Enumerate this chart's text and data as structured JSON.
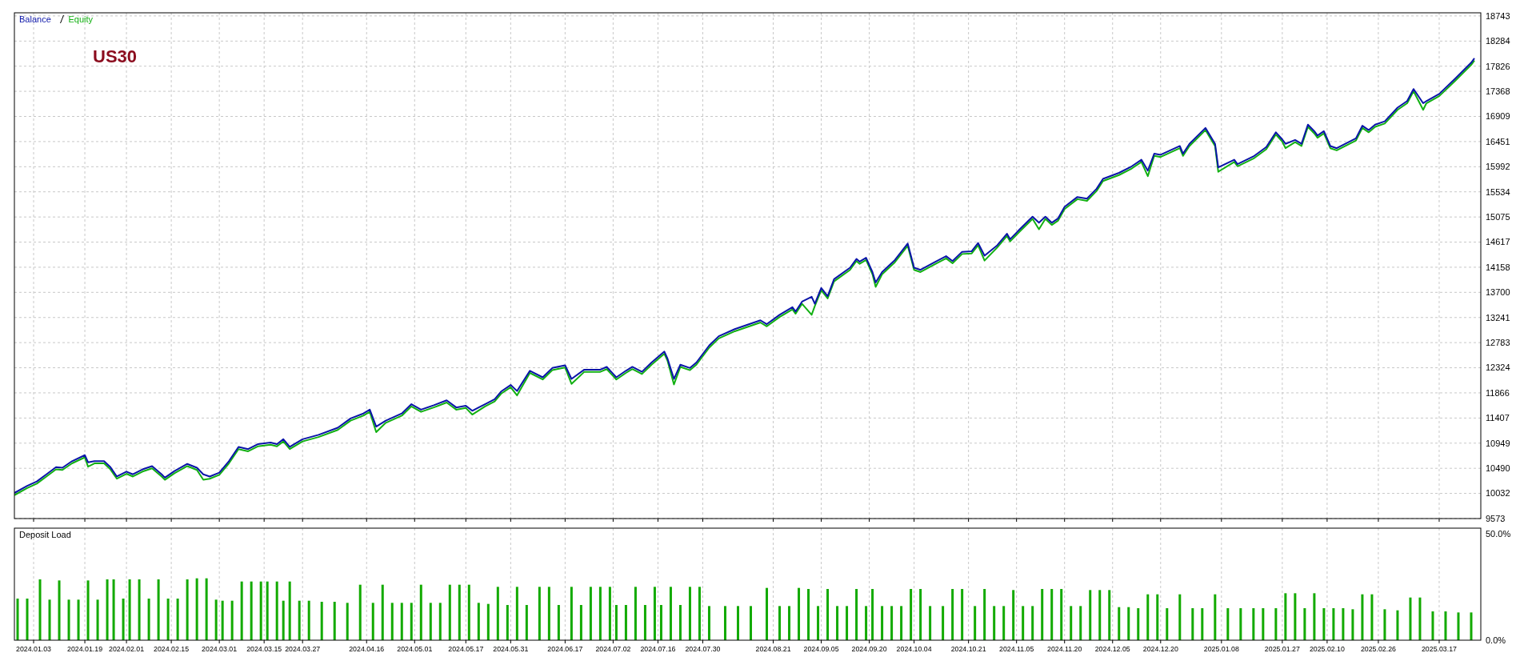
{
  "chart_data": [
    {
      "type": "line",
      "annotations": [
        "US30"
      ],
      "legend": "top left",
      "grid": true,
      "tick_labels": "y",
      "xlim": [
        "2023-12-28",
        "2025-03-30"
      ],
      "xticks": [
        {
          "value": "2024-01-03",
          "label": null
        },
        {
          "value": "2024-01-19",
          "label": null
        },
        {
          "value": "2024-02-01",
          "label": null
        },
        {
          "value": "2024-02-15",
          "label": null
        },
        {
          "value": "2024-03-01",
          "label": null
        },
        {
          "value": "2024-03-15",
          "label": null
        },
        {
          "value": "2024-03-27",
          "label": null
        },
        {
          "value": "2024-04-16",
          "label": null
        },
        {
          "value": "2024-05-01",
          "label": null
        },
        {
          "value": "2024-05-17",
          "label": null
        },
        {
          "value": "2024-05-31",
          "label": null
        },
        {
          "value": "2024-06-17",
          "label": null
        },
        {
          "value": "2024-07-02",
          "label": null
        },
        {
          "value": "2024-07-16",
          "label": null
        },
        {
          "value": "2024-07-30",
          "label": null
        },
        {
          "value": "2024-08-21",
          "label": null
        },
        {
          "value": "2024-09-05",
          "label": null
        },
        {
          "value": "2024-09-20",
          "label": null
        },
        {
          "value": "2024-10-04",
          "label": null
        },
        {
          "value": "2024-10-21",
          "label": null
        },
        {
          "value": "2024-11-05",
          "label": null
        },
        {
          "value": "2024-11-20",
          "label": null
        },
        {
          "value": "2024-12-05",
          "label": null
        },
        {
          "value": "2024-12-20",
          "label": null
        },
        {
          "value": "2025-01-08",
          "label": null
        },
        {
          "value": "2025-01-27",
          "label": null
        },
        {
          "value": "2025-02-10",
          "label": null
        },
        {
          "value": "2025-02-26",
          "label": null
        },
        {
          "value": "2025-03-17",
          "label": null
        }
      ],
      "ylim": [
        9573,
        18800
      ],
      "yticks": [
        9573,
        10032,
        10490,
        10949,
        11407,
        11866,
        12324,
        12783,
        13241,
        13700,
        14158,
        14617,
        15075,
        15534,
        15992,
        16451,
        16909,
        17368,
        17826,
        18284,
        18743
      ],
      "x": [
        "2023-12-28",
        "2024-01-01",
        "2024-01-04",
        "2024-01-07",
        "2024-01-10",
        "2024-01-12",
        "2024-01-15",
        "2024-01-19",
        "2024-01-20",
        "2024-01-22",
        "2024-01-25",
        "2024-01-27",
        "2024-01-29",
        "2024-02-01",
        "2024-02-03",
        "2024-02-06",
        "2024-02-09",
        "2024-02-12",
        "2024-02-13",
        "2024-02-16",
        "2024-02-20",
        "2024-02-23",
        "2024-02-25",
        "2024-02-27",
        "2024-03-01",
        "2024-03-04",
        "2024-03-07",
        "2024-03-10",
        "2024-03-13",
        "2024-03-17",
        "2024-03-19",
        "2024-03-21",
        "2024-03-23",
        "2024-03-27",
        "2024-04-01",
        "2024-04-07",
        "2024-04-11",
        "2024-04-15",
        "2024-04-17",
        "2024-04-19",
        "2024-04-22",
        "2024-04-27",
        "2024-04-30",
        "2024-05-03",
        "2024-05-07",
        "2024-05-11",
        "2024-05-14",
        "2024-05-17",
        "2024-05-19",
        "2024-05-23",
        "2024-05-26",
        "2024-05-28",
        "2024-05-31",
        "2024-06-02",
        "2024-06-06",
        "2024-06-10",
        "2024-06-13",
        "2024-06-17",
        "2024-06-19",
        "2024-06-23",
        "2024-06-28",
        "2024-06-30",
        "2024-07-03",
        "2024-07-06",
        "2024-07-08",
        "2024-07-11",
        "2024-07-14",
        "2024-07-18",
        "2024-07-19",
        "2024-07-21",
        "2024-07-23",
        "2024-07-26",
        "2024-07-28",
        "2024-08-01",
        "2024-08-04",
        "2024-08-09",
        "2024-08-17",
        "2024-08-19",
        "2024-08-23",
        "2024-08-27",
        "2024-08-28",
        "2024-08-30",
        "2024-09-02",
        "2024-09-03",
        "2024-09-05",
        "2024-09-07",
        "2024-09-09",
        "2024-09-14",
        "2024-09-16",
        "2024-09-17",
        "2024-09-19",
        "2024-09-21",
        "2024-09-22",
        "2024-09-24",
        "2024-09-28",
        "2024-10-02",
        "2024-10-04",
        "2024-10-06",
        "2024-10-11",
        "2024-10-14",
        "2024-10-16",
        "2024-10-19",
        "2024-10-22",
        "2024-10-24",
        "2024-10-26",
        "2024-10-30",
        "2024-11-02",
        "2024-11-03",
        "2024-11-06",
        "2024-11-10",
        "2024-11-12",
        "2024-11-14",
        "2024-11-16",
        "2024-11-18",
        "2024-11-20",
        "2024-11-24",
        "2024-11-27",
        "2024-11-30",
        "2024-12-02",
        "2024-12-07",
        "2024-12-11",
        "2024-12-14",
        "2024-12-16",
        "2024-12-18",
        "2024-12-20",
        "2024-12-26",
        "2024-12-27",
        "2024-12-29",
        "2025-01-03",
        "2025-01-06",
        "2025-01-07",
        "2025-01-12",
        "2025-01-13",
        "2025-01-18",
        "2025-01-22",
        "2025-01-25",
        "2025-01-27",
        "2025-01-28",
        "2025-01-31",
        "2025-02-02",
        "2025-02-04",
        "2025-02-06",
        "2025-02-07",
        "2025-02-09",
        "2025-02-11",
        "2025-02-13",
        "2025-02-19",
        "2025-02-21",
        "2025-02-23",
        "2025-02-25",
        "2025-02-28",
        "2025-03-04",
        "2025-03-07",
        "2025-03-09",
        "2025-03-12",
        "2025-03-13",
        "2025-03-17",
        "2025-03-22",
        "2025-03-27",
        "2025-03-28"
      ],
      "series": [
        {
          "name": "Balance",
          "color": "#0a14a8",
          "values": [
            10040,
            10170,
            10250,
            10380,
            10510,
            10500,
            10620,
            10730,
            10600,
            10620,
            10620,
            10510,
            10340,
            10430,
            10380,
            10470,
            10530,
            10380,
            10320,
            10440,
            10570,
            10500,
            10380,
            10340,
            10410,
            10620,
            10880,
            10840,
            10930,
            10960,
            10930,
            11020,
            10880,
            11020,
            11100,
            11230,
            11400,
            11490,
            11560,
            11250,
            11360,
            11490,
            11660,
            11560,
            11640,
            11730,
            11600,
            11630,
            11540,
            11660,
            11750,
            11890,
            12010,
            11900,
            12270,
            12150,
            12320,
            12370,
            12120,
            12290,
            12290,
            12340,
            12150,
            12270,
            12340,
            12250,
            12420,
            12620,
            12490,
            12120,
            12380,
            12320,
            12420,
            12730,
            12900,
            13030,
            13190,
            13120,
            13290,
            13430,
            13350,
            13530,
            13620,
            13490,
            13780,
            13630,
            13940,
            14150,
            14310,
            14260,
            14330,
            14070,
            13880,
            14070,
            14290,
            14590,
            14150,
            14110,
            14270,
            14360,
            14270,
            14440,
            14450,
            14600,
            14370,
            14560,
            14770,
            14670,
            14850,
            15080,
            14970,
            15080,
            14970,
            15050,
            15260,
            15440,
            15410,
            15590,
            15770,
            15880,
            16000,
            16120,
            15920,
            16230,
            16210,
            16370,
            16230,
            16410,
            16700,
            16410,
            15980,
            16120,
            16040,
            16180,
            16350,
            16620,
            16490,
            16410,
            16480,
            16410,
            16760,
            16640,
            16560,
            16640,
            16370,
            16330,
            16510,
            16740,
            16660,
            16760,
            16820,
            17070,
            17190,
            17410,
            17150,
            17190,
            17320,
            17600,
            17890,
            17970
          ]
        },
        {
          "name": "Equity",
          "color": "#12b012",
          "values": [
            10000,
            10130,
            10210,
            10340,
            10470,
            10460,
            10580,
            10690,
            10520,
            10580,
            10580,
            10470,
            10300,
            10390,
            10340,
            10430,
            10490,
            10340,
            10280,
            10400,
            10530,
            10460,
            10280,
            10300,
            10370,
            10580,
            10840,
            10800,
            10890,
            10920,
            10890,
            10980,
            10840,
            10980,
            11060,
            11190,
            11360,
            11450,
            11520,
            11150,
            11320,
            11450,
            11620,
            11520,
            11600,
            11690,
            11560,
            11590,
            11470,
            11620,
            11710,
            11850,
            11970,
            11820,
            12230,
            12110,
            12280,
            12330,
            12030,
            12250,
            12250,
            12300,
            12110,
            12230,
            12300,
            12210,
            12380,
            12580,
            12450,
            12020,
            12340,
            12280,
            12380,
            12690,
            12860,
            12990,
            13150,
            13080,
            13250,
            13390,
            13310,
            13490,
            13290,
            13450,
            13740,
            13590,
            13900,
            14110,
            14270,
            14220,
            14290,
            14030,
            13800,
            14030,
            14250,
            14550,
            14110,
            14070,
            14230,
            14320,
            14230,
            14400,
            14410,
            14560,
            14280,
            14520,
            14730,
            14630,
            14810,
            15040,
            14850,
            15040,
            14930,
            15010,
            15220,
            15400,
            15370,
            15550,
            15730,
            15840,
            15960,
            16080,
            15820,
            16190,
            16170,
            16330,
            16190,
            16370,
            16660,
            16370,
            15900,
            16080,
            16000,
            16140,
            16310,
            16580,
            16450,
            16330,
            16440,
            16370,
            16720,
            16600,
            16520,
            16600,
            16330,
            16290,
            16470,
            16700,
            16620,
            16720,
            16780,
            17030,
            17150,
            17370,
            17030,
            17150,
            17280,
            17560,
            17850,
            17930
          ]
        }
      ]
    },
    {
      "type": "bar",
      "title": "Deposit Load",
      "color": "#12aa00",
      "grid": "x",
      "xlim": [
        "2023-12-28",
        "2025-03-30"
      ],
      "xticks": [
        {
          "value": "2024-01-03",
          "label": "2024.01.03"
        },
        {
          "value": "2024-01-19",
          "label": "2024.01.19"
        },
        {
          "value": "2024-02-01",
          "label": "2024.02.01"
        },
        {
          "value": "2024-02-15",
          "label": "2024.02.15"
        },
        {
          "value": "2024-03-01",
          "label": "2024.03.01"
        },
        {
          "value": "2024-03-15",
          "label": "2024.03.15"
        },
        {
          "value": "2024-03-27",
          "label": "2024.03.27"
        },
        {
          "value": "2024-04-16",
          "label": "2024.04.16"
        },
        {
          "value": "2024-05-01",
          "label": "2024.05.01"
        },
        {
          "value": "2024-05-17",
          "label": "2024.05.17"
        },
        {
          "value": "2024-05-31",
          "label": "2024.05.31"
        },
        {
          "value": "2024-06-17",
          "label": "2024.06.17"
        },
        {
          "value": "2024-07-02",
          "label": "2024.07.02"
        },
        {
          "value": "2024-07-16",
          "label": "2024.07.16"
        },
        {
          "value": "2024-07-30",
          "label": "2024.07.30"
        },
        {
          "value": "2024-08-21",
          "label": "2024.08.21"
        },
        {
          "value": "2024-09-05",
          "label": "2024.09.05"
        },
        {
          "value": "2024-09-20",
          "label": "2024.09.20"
        },
        {
          "value": "2024-10-04",
          "label": "2024.10.04"
        },
        {
          "value": "2024-10-21",
          "label": "2024.10.21"
        },
        {
          "value": "2024-11-05",
          "label": "2024.11.05"
        },
        {
          "value": "2024-11-20",
          "label": "2024.11.20"
        },
        {
          "value": "2024-12-05",
          "label": "2024.12.05"
        },
        {
          "value": "2024-12-20",
          "label": "2024.12.20"
        },
        {
          "value": "2025-01-08",
          "label": "2025.01.08"
        },
        {
          "value": "2025-01-27",
          "label": "2025.01.27"
        },
        {
          "value": "2025-02-10",
          "label": "2025.02.10"
        },
        {
          "value": "2025-02-26",
          "label": "2025.02.26"
        },
        {
          "value": "2025-03-17",
          "label": "2025.03.17"
        }
      ],
      "ylim": [
        0,
        52.5
      ],
      "yticks": [
        {
          "value": 0,
          "label": "0.0%"
        },
        {
          "value": 50,
          "label": "50.0%"
        }
      ],
      "x": [
        "2023-12-29",
        "2024-01-01",
        "2024-01-05",
        "2024-01-08",
        "2024-01-11",
        "2024-01-14",
        "2024-01-17",
        "2024-01-20",
        "2024-01-23",
        "2024-01-26",
        "2024-01-28",
        "2024-01-31",
        "2024-02-02",
        "2024-02-05",
        "2024-02-08",
        "2024-02-11",
        "2024-02-14",
        "2024-02-17",
        "2024-02-20",
        "2024-02-23",
        "2024-02-26",
        "2024-02-29",
        "2024-03-02",
        "2024-03-05",
        "2024-03-08",
        "2024-03-11",
        "2024-03-14",
        "2024-03-16",
        "2024-03-19",
        "2024-03-21",
        "2024-03-23",
        "2024-03-26",
        "2024-03-29",
        "2024-04-02",
        "2024-04-06",
        "2024-04-10",
        "2024-04-14",
        "2024-04-18",
        "2024-04-21",
        "2024-04-24",
        "2024-04-27",
        "2024-04-30",
        "2024-05-03",
        "2024-05-06",
        "2024-05-09",
        "2024-05-12",
        "2024-05-15",
        "2024-05-18",
        "2024-05-21",
        "2024-05-24",
        "2024-05-27",
        "2024-05-30",
        "2024-06-02",
        "2024-06-05",
        "2024-06-09",
        "2024-06-12",
        "2024-06-15",
        "2024-06-19",
        "2024-06-22",
        "2024-06-25",
        "2024-06-28",
        "2024-07-01",
        "2024-07-03",
        "2024-07-06",
        "2024-07-09",
        "2024-07-12",
        "2024-07-15",
        "2024-07-17",
        "2024-07-20",
        "2024-07-23",
        "2024-07-26",
        "2024-07-29",
        "2024-08-01",
        "2024-08-06",
        "2024-08-10",
        "2024-08-14",
        "2024-08-19",
        "2024-08-23",
        "2024-08-26",
        "2024-08-29",
        "2024-09-01",
        "2024-09-04",
        "2024-09-07",
        "2024-09-10",
        "2024-09-13",
        "2024-09-16",
        "2024-09-19",
        "2024-09-21",
        "2024-09-24",
        "2024-09-27",
        "2024-09-30",
        "2024-10-03",
        "2024-10-06",
        "2024-10-09",
        "2024-10-13",
        "2024-10-16",
        "2024-10-19",
        "2024-10-23",
        "2024-10-26",
        "2024-10-29",
        "2024-11-01",
        "2024-11-04",
        "2024-11-07",
        "2024-11-10",
        "2024-11-13",
        "2024-11-16",
        "2024-11-19",
        "2024-11-22",
        "2024-11-25",
        "2024-11-28",
        "2024-12-01",
        "2024-12-04",
        "2024-12-07",
        "2024-12-10",
        "2024-12-13",
        "2024-12-16",
        "2024-12-19",
        "2024-12-22",
        "2024-12-26",
        "2024-12-30",
        "2025-01-02",
        "2025-01-06",
        "2025-01-10",
        "2025-01-14",
        "2025-01-18",
        "2025-01-21",
        "2025-01-25",
        "2025-01-28",
        "2025-01-31",
        "2025-02-03",
        "2025-02-06",
        "2025-02-09",
        "2025-02-12",
        "2025-02-15",
        "2025-02-18",
        "2025-02-21",
        "2025-02-24",
        "2025-02-28",
        "2025-03-04",
        "2025-03-08",
        "2025-03-11",
        "2025-03-15",
        "2025-03-19",
        "2025-03-23",
        "2025-03-27"
      ],
      "values": [
        19.5,
        19.5,
        28.5,
        19,
        28,
        19,
        19,
        28,
        19,
        28.5,
        28.5,
        19.5,
        28.5,
        28.5,
        19.5,
        28.5,
        19.5,
        19.5,
        28.5,
        29,
        29,
        19,
        18.5,
        18.5,
        27.5,
        27.5,
        27.5,
        27.5,
        27.5,
        18.5,
        27.5,
        18.5,
        18.5,
        18,
        18,
        17.5,
        26,
        17.5,
        26,
        17.5,
        17.5,
        17.5,
        26,
        17.5,
        17.5,
        26,
        26,
        26,
        17.5,
        17,
        25,
        16.5,
        25,
        16.5,
        25,
        25,
        16.5,
        25,
        16.5,
        25,
        25,
        25,
        16.5,
        16.5,
        25,
        16.5,
        25,
        16.5,
        25,
        16.5,
        25,
        25,
        16,
        16,
        16,
        16,
        24.5,
        16,
        16,
        24.5,
        24,
        16,
        24,
        16,
        16,
        24,
        16,
        24,
        16,
        16,
        16,
        24,
        24,
        16,
        16,
        24,
        24,
        16,
        24,
        16,
        16,
        23.5,
        16,
        16,
        24,
        24,
        24,
        16,
        16,
        23.5,
        23.5,
        23.5,
        15.5,
        15.5,
        15,
        21.5,
        21.5,
        15,
        21.5,
        15,
        15,
        21.5,
        15,
        15,
        15,
        15,
        15,
        22,
        22,
        15,
        22,
        15,
        15,
        15,
        14.5,
        21.5,
        21.5,
        14.5,
        14,
        20,
        20,
        13.5,
        13.5,
        13,
        13
      ]
    }
  ]
}
